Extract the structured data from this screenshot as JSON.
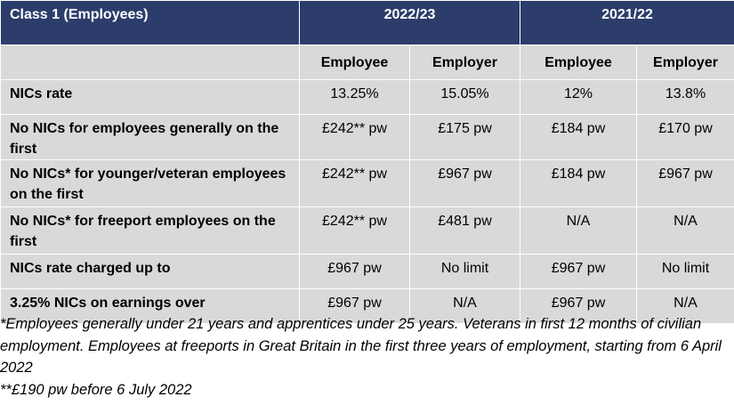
{
  "table": {
    "header": {
      "title": "Class 1 (Employees)",
      "year_a": "2022/23",
      "year_b": "2021/22"
    },
    "subheader": [
      "Employee",
      "Employer",
      "Employee",
      "Employer"
    ],
    "rows": [
      {
        "label": "NICs rate",
        "values": [
          "13.25%",
          "15.05%",
          "12%",
          "13.8%"
        ]
      },
      {
        "label": "No NICs for employees generally on the first",
        "values": [
          "£242** pw",
          "£175 pw",
          "£184 pw",
          "£170 pw"
        ]
      },
      {
        "label": "No NICs* for younger/veteran employees on the first",
        "values": [
          "£242** pw",
          "£967 pw",
          "£184 pw",
          "£967 pw"
        ]
      },
      {
        "label": "No NICs* for freeport employees on the first",
        "values": [
          "£242** pw",
          "£481 pw",
          "N/A",
          "N/A"
        ]
      },
      {
        "label": "NICs rate charged up to",
        "values": [
          "£967 pw",
          "No limit",
          "£967 pw",
          "No limit"
        ]
      },
      {
        "label": "3.25% NICs on earnings over",
        "values": [
          "£967 pw",
          "N/A",
          "£967 pw",
          "N/A"
        ]
      }
    ]
  },
  "notes": {
    "footnote_1": "*Employees generally under 21 years and apprentices under 25 years. Veterans in first 12 months of civilian employment. Employees at freeports in Great Britain in the first three years of employment, starting from 6 April 2022",
    "footnote_2": "**£190 pw before 6 July 2022"
  }
}
